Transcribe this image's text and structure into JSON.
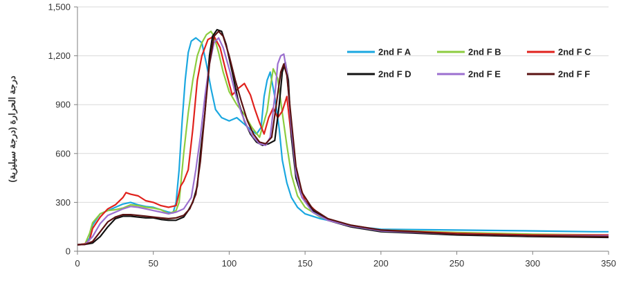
{
  "chart_data": {
    "type": "line",
    "ylabel": "درجة الحرارة (درجة سيليزية)",
    "xlabel": "",
    "xlim": [
      0,
      350
    ],
    "ylim": [
      0,
      1500
    ],
    "x_ticks": [
      0,
      50,
      100,
      150,
      200,
      250,
      300,
      350
    ],
    "y_ticks": [
      0,
      300,
      600,
      900,
      1200,
      1500
    ],
    "x_tick_labels": [
      "0",
      "50",
      "100",
      "150",
      "200",
      "250",
      "300",
      "350"
    ],
    "y_tick_labels": [
      "0",
      "300",
      "600",
      "900",
      "1,200",
      "1,500"
    ],
    "grid": "horizontal",
    "legend_position": "top-right",
    "series": [
      {
        "name": "2nd F A",
        "color": "#1aa7e0",
        "points": [
          [
            0,
            40
          ],
          [
            5,
            45
          ],
          [
            8,
            80
          ],
          [
            10,
            160
          ],
          [
            15,
            230
          ],
          [
            20,
            250
          ],
          [
            25,
            270
          ],
          [
            30,
            290
          ],
          [
            35,
            300
          ],
          [
            40,
            285
          ],
          [
            45,
            275
          ],
          [
            50,
            270
          ],
          [
            55,
            255
          ],
          [
            60,
            240
          ],
          [
            63,
            235
          ],
          [
            65,
            300
          ],
          [
            67,
            500
          ],
          [
            69,
            800
          ],
          [
            71,
            1050
          ],
          [
            73,
            1220
          ],
          [
            75,
            1290
          ],
          [
            78,
            1310
          ],
          [
            82,
            1280
          ],
          [
            85,
            1150
          ],
          [
            88,
            1000
          ],
          [
            91,
            870
          ],
          [
            95,
            820
          ],
          [
            100,
            800
          ],
          [
            105,
            820
          ],
          [
            110,
            780
          ],
          [
            115,
            740
          ],
          [
            118,
            720
          ],
          [
            121,
            760
          ],
          [
            123,
            950
          ],
          [
            125,
            1050
          ],
          [
            127,
            1100
          ],
          [
            130,
            950
          ],
          [
            133,
            750
          ],
          [
            135,
            560
          ],
          [
            138,
            420
          ],
          [
            141,
            330
          ],
          [
            145,
            270
          ],
          [
            150,
            230
          ],
          [
            160,
            200
          ],
          [
            170,
            180
          ],
          [
            180,
            160
          ],
          [
            190,
            145
          ],
          [
            200,
            135
          ],
          [
            250,
            130
          ],
          [
            300,
            125
          ],
          [
            340,
            120
          ],
          [
            350,
            120
          ]
        ]
      },
      {
        "name": "2nd F B",
        "color": "#8ccc3f",
        "points": [
          [
            0,
            40
          ],
          [
            5,
            45
          ],
          [
            8,
            110
          ],
          [
            10,
            175
          ],
          [
            15,
            230
          ],
          [
            20,
            250
          ],
          [
            25,
            255
          ],
          [
            30,
            265
          ],
          [
            35,
            285
          ],
          [
            40,
            280
          ],
          [
            45,
            270
          ],
          [
            50,
            265
          ],
          [
            55,
            255
          ],
          [
            60,
            230
          ],
          [
            65,
            250
          ],
          [
            67,
            300
          ],
          [
            70,
            600
          ],
          [
            73,
            850
          ],
          [
            76,
            1050
          ],
          [
            79,
            1200
          ],
          [
            82,
            1280
          ],
          [
            85,
            1330
          ],
          [
            88,
            1350
          ],
          [
            90,
            1320
          ],
          [
            93,
            1220
          ],
          [
            96,
            1100
          ],
          [
            100,
            980
          ],
          [
            105,
            900
          ],
          [
            110,
            840
          ],
          [
            115,
            760
          ],
          [
            120,
            700
          ],
          [
            125,
            860
          ],
          [
            127,
            1000
          ],
          [
            129,
            1120
          ],
          [
            132,
            1060
          ],
          [
            135,
            850
          ],
          [
            138,
            650
          ],
          [
            141,
            470
          ],
          [
            145,
            340
          ],
          [
            150,
            270
          ],
          [
            160,
            210
          ],
          [
            170,
            180
          ],
          [
            180,
            160
          ],
          [
            190,
            140
          ],
          [
            200,
            130
          ],
          [
            250,
            115
          ],
          [
            300,
            105
          ],
          [
            350,
            100
          ]
        ]
      },
      {
        "name": "2nd F C",
        "color": "#e0211c",
        "points": [
          [
            0,
            40
          ],
          [
            5,
            45
          ],
          [
            8,
            70
          ],
          [
            10,
            140
          ],
          [
            15,
            210
          ],
          [
            20,
            260
          ],
          [
            25,
            285
          ],
          [
            30,
            330
          ],
          [
            32,
            360
          ],
          [
            35,
            350
          ],
          [
            40,
            340
          ],
          [
            45,
            310
          ],
          [
            50,
            300
          ],
          [
            55,
            280
          ],
          [
            60,
            270
          ],
          [
            65,
            280
          ],
          [
            68,
            400
          ],
          [
            70,
            430
          ],
          [
            73,
            500
          ],
          [
            76,
            750
          ],
          [
            79,
            1050
          ],
          [
            82,
            1200
          ],
          [
            86,
            1300
          ],
          [
            90,
            1320
          ],
          [
            94,
            1250
          ],
          [
            98,
            1100
          ],
          [
            102,
            960
          ],
          [
            106,
            1000
          ],
          [
            110,
            1030
          ],
          [
            114,
            960
          ],
          [
            117,
            870
          ],
          [
            120,
            790
          ],
          [
            123,
            720
          ],
          [
            126,
            820
          ],
          [
            129,
            880
          ],
          [
            132,
            820
          ],
          [
            135,
            860
          ],
          [
            138,
            950
          ],
          [
            141,
            700
          ],
          [
            145,
            450
          ],
          [
            150,
            310
          ],
          [
            160,
            220
          ],
          [
            170,
            180
          ],
          [
            180,
            160
          ],
          [
            200,
            130
          ],
          [
            250,
            110
          ],
          [
            300,
            100
          ],
          [
            350,
            100
          ]
        ]
      },
      {
        "name": "2nd F D",
        "color": "#111111",
        "points": [
          [
            0,
            40
          ],
          [
            5,
            42
          ],
          [
            10,
            50
          ],
          [
            15,
            90
          ],
          [
            20,
            150
          ],
          [
            25,
            200
          ],
          [
            30,
            215
          ],
          [
            35,
            215
          ],
          [
            40,
            210
          ],
          [
            45,
            205
          ],
          [
            50,
            205
          ],
          [
            55,
            195
          ],
          [
            60,
            190
          ],
          [
            65,
            190
          ],
          [
            70,
            210
          ],
          [
            73,
            250
          ],
          [
            76,
            300
          ],
          [
            79,
            400
          ],
          [
            81,
            600
          ],
          [
            84,
            850
          ],
          [
            87,
            1200
          ],
          [
            89,
            1320
          ],
          [
            92,
            1360
          ],
          [
            95,
            1350
          ],
          [
            98,
            1270
          ],
          [
            102,
            1100
          ],
          [
            106,
            920
          ],
          [
            110,
            800
          ],
          [
            114,
            720
          ],
          [
            118,
            670
          ],
          [
            122,
            650
          ],
          [
            126,
            660
          ],
          [
            130,
            680
          ],
          [
            133,
            900
          ],
          [
            135,
            1100
          ],
          [
            137,
            1160
          ],
          [
            139,
            1050
          ],
          [
            141,
            700
          ],
          [
            144,
            450
          ],
          [
            148,
            330
          ],
          [
            155,
            250
          ],
          [
            165,
            190
          ],
          [
            180,
            150
          ],
          [
            200,
            120
          ],
          [
            250,
            100
          ],
          [
            300,
            90
          ],
          [
            350,
            85
          ]
        ]
      },
      {
        "name": "2nd F E",
        "color": "#9b6fcf",
        "points": [
          [
            0,
            40
          ],
          [
            5,
            42
          ],
          [
            10,
            90
          ],
          [
            15,
            170
          ],
          [
            20,
            220
          ],
          [
            25,
            240
          ],
          [
            30,
            260
          ],
          [
            35,
            275
          ],
          [
            40,
            270
          ],
          [
            45,
            260
          ],
          [
            50,
            250
          ],
          [
            55,
            240
          ],
          [
            60,
            230
          ],
          [
            65,
            240
          ],
          [
            70,
            260
          ],
          [
            75,
            330
          ],
          [
            78,
            500
          ],
          [
            81,
            700
          ],
          [
            84,
            950
          ],
          [
            87,
            1150
          ],
          [
            90,
            1280
          ],
          [
            93,
            1310
          ],
          [
            96,
            1250
          ],
          [
            100,
            1120
          ],
          [
            104,
            970
          ],
          [
            108,
            850
          ],
          [
            112,
            760
          ],
          [
            116,
            700
          ],
          [
            120,
            660
          ],
          [
            124,
            650
          ],
          [
            127,
            700
          ],
          [
            130,
            950
          ],
          [
            132,
            1150
          ],
          [
            134,
            1200
          ],
          [
            136,
            1210
          ],
          [
            138,
            1100
          ],
          [
            141,
            750
          ],
          [
            144,
            480
          ],
          [
            148,
            330
          ],
          [
            155,
            240
          ],
          [
            165,
            190
          ],
          [
            180,
            155
          ],
          [
            200,
            125
          ],
          [
            250,
            105
          ],
          [
            300,
            95
          ],
          [
            350,
            95
          ]
        ]
      },
      {
        "name": "2nd F F",
        "color": "#5a1212",
        "points": [
          [
            0,
            40
          ],
          [
            5,
            42
          ],
          [
            10,
            60
          ],
          [
            15,
            120
          ],
          [
            20,
            180
          ],
          [
            25,
            210
          ],
          [
            30,
            225
          ],
          [
            35,
            225
          ],
          [
            40,
            220
          ],
          [
            45,
            215
          ],
          [
            50,
            210
          ],
          [
            55,
            205
          ],
          [
            60,
            200
          ],
          [
            65,
            205
          ],
          [
            70,
            220
          ],
          [
            74,
            260
          ],
          [
            78,
            350
          ],
          [
            81,
            550
          ],
          [
            84,
            850
          ],
          [
            87,
            1150
          ],
          [
            90,
            1320
          ],
          [
            93,
            1350
          ],
          [
            96,
            1320
          ],
          [
            100,
            1200
          ],
          [
            104,
            1050
          ],
          [
            108,
            920
          ],
          [
            112,
            800
          ],
          [
            116,
            720
          ],
          [
            120,
            670
          ],
          [
            124,
            660
          ],
          [
            128,
            700
          ],
          [
            131,
            900
          ],
          [
            134,
            1100
          ],
          [
            136,
            1150
          ],
          [
            138,
            1080
          ],
          [
            141,
            800
          ],
          [
            144,
            520
          ],
          [
            148,
            360
          ],
          [
            155,
            260
          ],
          [
            165,
            200
          ],
          [
            180,
            160
          ],
          [
            200,
            130
          ],
          [
            250,
            105
          ],
          [
            300,
            95
          ],
          [
            350,
            90
          ]
        ]
      }
    ]
  }
}
